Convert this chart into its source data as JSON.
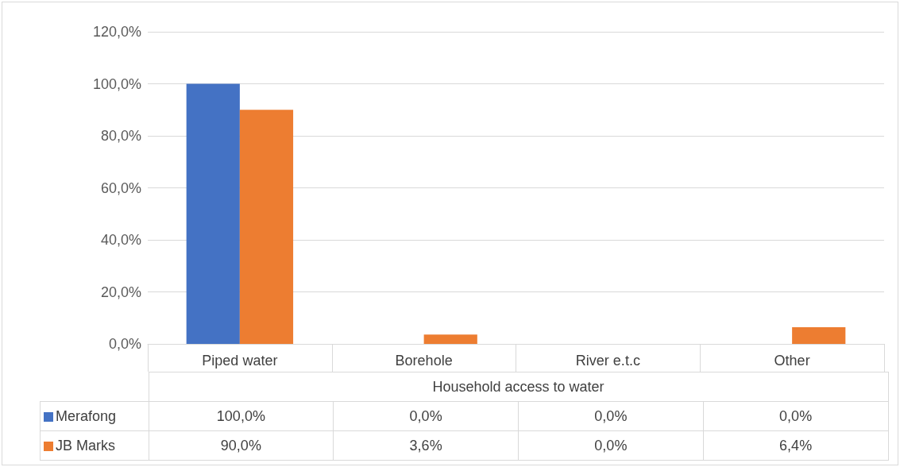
{
  "chart_data": {
    "type": "bar",
    "xlabel": "Household access to water",
    "categories": [
      "Piped water",
      "Borehole",
      "River e.t.c",
      "Other"
    ],
    "series": [
      {
        "name": "Merafong",
        "color": "#4472c4",
        "values": [
          100,
          0,
          0,
          0
        ],
        "value_labels": [
          "100,0%",
          "0,0%",
          "0,0%",
          "0,0%"
        ]
      },
      {
        "name": "JB Marks",
        "color": "#ed7d31",
        "values": [
          90,
          3.6,
          0,
          6.4
        ],
        "value_labels": [
          "90,0%",
          "3,6%",
          "0,0%",
          "6,4%"
        ]
      }
    ],
    "ylim": [
      0,
      120
    ],
    "yticks": [
      {
        "value": 0,
        "label": "0,0%"
      },
      {
        "value": 20,
        "label": "20,0%"
      },
      {
        "value": 40,
        "label": "40,0%"
      },
      {
        "value": 60,
        "label": "60,0%"
      },
      {
        "value": 80,
        "label": "80,0%"
      },
      {
        "value": 100,
        "label": "100,0%"
      },
      {
        "value": 120,
        "label": "120,0%"
      }
    ],
    "grid": "y",
    "legend": "bottom"
  }
}
